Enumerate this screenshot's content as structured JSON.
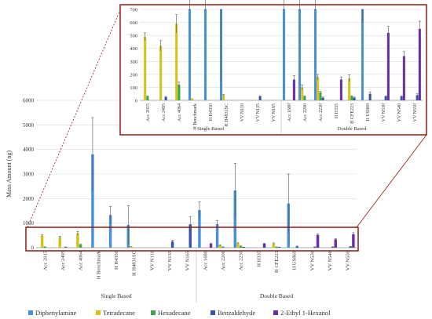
{
  "chart_data": [
    {
      "type": "bar",
      "title": "",
      "ylabel": "Mass Amount (ng)",
      "xlabel": "",
      "ylim": [
        0,
        6000
      ],
      "yticks": [
        0,
        1000,
        2000,
        3000,
        4000,
        5000,
        6000
      ],
      "grid": true,
      "legend_position": "bottom",
      "categories": [
        "Acc 2015",
        "Acc 2495",
        "Acc 4064",
        "H Benchmark",
        "H H4350",
        "H H4831SC",
        "VV N110",
        "VV N135",
        "VV N165",
        "Acc 1680",
        "Acc 2200",
        "Acc 2230",
        "H H335",
        "H CFE223",
        "H US869",
        "VV N530",
        "VV N540",
        "VV N550"
      ],
      "groups": [
        {
          "label": "Single Based",
          "count": 9
        },
        {
          "label": "Double Based",
          "count": 9
        }
      ],
      "series": [
        {
          "name": "Diphenylamine",
          "color": "#4a90d9",
          "values": [
            0,
            0,
            0,
            3800,
            1330,
            930,
            0,
            0,
            0,
            1530,
            960,
            2330,
            0,
            0,
            1800,
            0,
            0,
            0
          ],
          "errors": [
            0,
            0,
            0,
            1500,
            350,
            780,
            0,
            0,
            0,
            330,
            150,
            1100,
            0,
            0,
            1200,
            0,
            0,
            0
          ]
        },
        {
          "name": "Tetradecane",
          "color": "#d4c21a",
          "values": [
            490,
            420,
            590,
            15,
            0,
            40,
            0,
            0,
            0,
            0,
            100,
            180,
            0,
            170,
            0,
            0,
            0,
            0
          ],
          "errors": [
            30,
            40,
            70,
            0,
            0,
            5,
            0,
            0,
            0,
            0,
            20,
            20,
            0,
            25,
            0,
            0,
            0,
            0
          ]
        },
        {
          "name": "Hexadecane",
          "color": "#3aa64a",
          "values": [
            30,
            0,
            120,
            0,
            0,
            0,
            0,
            0,
            0,
            0,
            30,
            60,
            0,
            30,
            0,
            0,
            0,
            0
          ],
          "errors": [
            5,
            0,
            20,
            0,
            0,
            0,
            0,
            0,
            0,
            0,
            5,
            10,
            0,
            5,
            0,
            0,
            0,
            0
          ]
        },
        {
          "name": "Benzaldehyde",
          "color": "#3a55a8",
          "values": [
            0,
            25,
            0,
            0,
            0,
            0,
            0,
            30,
            0,
            0,
            0,
            20,
            0,
            20,
            50,
            30,
            30,
            40
          ],
          "errors": [
            0,
            5,
            0,
            0,
            0,
            0,
            0,
            5,
            0,
            0,
            0,
            5,
            0,
            5,
            15,
            5,
            5,
            10
          ],
          "main_values": [
            0,
            25,
            0,
            0,
            0,
            0,
            0,
            250,
            950,
            0,
            0,
            20,
            0,
            20,
            50,
            30,
            30,
            40
          ],
          "main_errors": [
            0,
            5,
            0,
            0,
            0,
            0,
            0,
            60,
            320,
            0,
            0,
            5,
            0,
            5,
            15,
            5,
            5,
            10
          ]
        },
        {
          "name": "2-Ethyl 1-Hexanol",
          "color": "#6a2fa0",
          "values": [
            0,
            0,
            0,
            0,
            0,
            0,
            0,
            0,
            0,
            160,
            0,
            0,
            160,
            0,
            0,
            520,
            340,
            550
          ],
          "errors": [
            0,
            0,
            0,
            0,
            0,
            0,
            0,
            0,
            0,
            30,
            0,
            0,
            20,
            0,
            0,
            50,
            35,
            60
          ]
        }
      ]
    },
    {
      "type": "bar",
      "title": "",
      "ylabel": "",
      "ylim": [
        0,
        700
      ],
      "yticks": [
        0,
        100,
        200,
        300,
        400,
        500,
        600,
        700
      ],
      "grid": true,
      "inset_of": 0
    }
  ]
}
